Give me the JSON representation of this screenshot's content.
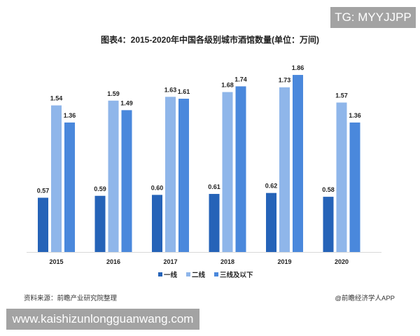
{
  "badges": {
    "tg": "TG: MYYJJPP",
    "url": "www.kaishizunlongguanwang.com"
  },
  "title": "图表4：2015-2020年中国各级别城市酒馆数量(单位：万间)",
  "footer": {
    "source": "资料来源：前瞻产业研究院整理",
    "credit": "@前瞻经济学人APP"
  },
  "colors": {
    "tier1": "#2563b8",
    "tier2": "#8fb6ea",
    "tier3": "#4a88dc"
  },
  "chart_data": {
    "type": "bar",
    "title": "图表4：2015-2020年中国各级别城市酒馆数量(单位：万间)",
    "xlabel": "",
    "ylabel": "万间",
    "categories": [
      "2015",
      "2016",
      "2017",
      "2018",
      "2019",
      "2020"
    ],
    "series": [
      {
        "name": "一线",
        "values": [
          0.57,
          0.59,
          0.6,
          0.61,
          0.62,
          0.58
        ]
      },
      {
        "name": "二线",
        "values": [
          1.54,
          1.59,
          1.63,
          1.68,
          1.73,
          1.57
        ]
      },
      {
        "name": "三线及以下",
        "values": [
          1.36,
          1.49,
          1.61,
          1.74,
          1.86,
          1.36
        ]
      }
    ],
    "ylim": [
      0,
      2.0
    ],
    "grid": false,
    "legend_position": "bottom",
    "data_labels": true
  }
}
